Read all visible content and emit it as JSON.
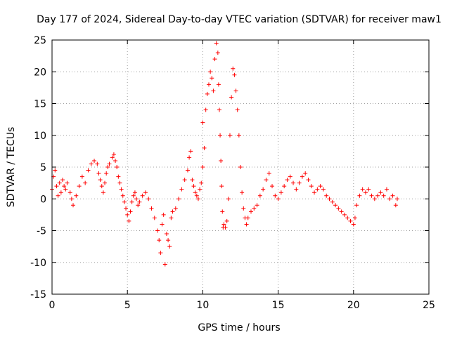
{
  "chart_data": {
    "type": "scatter",
    "title": "Day 177 of 2024, Sidereal Day-to-day VTEC variation (SDTVAR) for receiver maw1",
    "xlabel": "GPS time / hours",
    "ylabel": "SDTVAR / TECUs",
    "xlim": [
      0,
      25
    ],
    "ylim": [
      -15,
      25
    ],
    "xticks": [
      0,
      5,
      10,
      15,
      20,
      25
    ],
    "yticks": [
      -15,
      -10,
      -5,
      0,
      5,
      10,
      15,
      20,
      25
    ],
    "x_tick_labels": [
      "0",
      "5",
      "10",
      "15",
      "20",
      "25"
    ],
    "y_tick_labels": [
      "-15",
      "-10",
      "-5",
      "0",
      "5",
      "10",
      "15",
      "20",
      "25"
    ],
    "grid": true,
    "marker": "+",
    "color": "#ff0000",
    "series": [
      {
        "name": "SDTVAR",
        "points": [
          [
            0.0,
            1.5
          ],
          [
            0.1,
            3.5
          ],
          [
            0.2,
            4.5
          ],
          [
            0.3,
            2.0
          ],
          [
            0.4,
            0.5
          ],
          [
            0.5,
            2.5
          ],
          [
            0.6,
            1.0
          ],
          [
            0.7,
            3.0
          ],
          [
            0.8,
            2.0
          ],
          [
            0.9,
            1.5
          ],
          [
            1.0,
            2.5
          ],
          [
            1.2,
            1.0
          ],
          [
            1.3,
            0.0
          ],
          [
            1.4,
            -1.0
          ],
          [
            1.6,
            0.5
          ],
          [
            1.8,
            2.0
          ],
          [
            2.0,
            3.5
          ],
          [
            2.2,
            2.5
          ],
          [
            2.4,
            4.5
          ],
          [
            2.6,
            5.5
          ],
          [
            2.8,
            6.0
          ],
          [
            3.0,
            5.5
          ],
          [
            3.1,
            4.0
          ],
          [
            3.2,
            3.0
          ],
          [
            3.3,
            2.0
          ],
          [
            3.4,
            1.0
          ],
          [
            3.5,
            2.5
          ],
          [
            3.6,
            4.0
          ],
          [
            3.7,
            5.0
          ],
          [
            3.8,
            5.5
          ],
          [
            4.0,
            6.5
          ],
          [
            4.1,
            7.0
          ],
          [
            4.2,
            6.0
          ],
          [
            4.3,
            5.0
          ],
          [
            4.4,
            3.5
          ],
          [
            4.5,
            2.5
          ],
          [
            4.6,
            1.5
          ],
          [
            4.7,
            0.5
          ],
          [
            4.8,
            -0.5
          ],
          [
            4.9,
            -1.5
          ],
          [
            5.0,
            -2.5
          ],
          [
            5.1,
            -3.5
          ],
          [
            5.2,
            -2.0
          ],
          [
            5.3,
            -0.5
          ],
          [
            5.4,
            0.5
          ],
          [
            5.5,
            1.0
          ],
          [
            5.6,
            0.0
          ],
          [
            5.7,
            -1.0
          ],
          [
            5.8,
            -0.5
          ],
          [
            6.0,
            0.5
          ],
          [
            6.2,
            1.0
          ],
          [
            6.4,
            0.0
          ],
          [
            6.6,
            -1.5
          ],
          [
            6.8,
            -3.0
          ],
          [
            7.0,
            -5.0
          ],
          [
            7.1,
            -6.5
          ],
          [
            7.2,
            -8.5
          ],
          [
            7.3,
            -4.0
          ],
          [
            7.4,
            -2.5
          ],
          [
            7.5,
            -10.3
          ],
          [
            7.6,
            -5.5
          ],
          [
            7.7,
            -6.5
          ],
          [
            7.8,
            -7.5
          ],
          [
            7.9,
            -3.0
          ],
          [
            8.0,
            -2.0
          ],
          [
            8.2,
            -1.5
          ],
          [
            8.4,
            0.0
          ],
          [
            8.6,
            1.5
          ],
          [
            8.8,
            3.0
          ],
          [
            9.0,
            4.5
          ],
          [
            9.1,
            6.5
          ],
          [
            9.2,
            7.5
          ],
          [
            9.3,
            3.0
          ],
          [
            9.4,
            2.0
          ],
          [
            9.5,
            1.0
          ],
          [
            9.6,
            0.5
          ],
          [
            9.7,
            0.0
          ],
          [
            9.8,
            1.5
          ],
          [
            9.9,
            2.5
          ],
          [
            10.0,
            12.0
          ],
          [
            10.0,
            5.0
          ],
          [
            10.1,
            8.0
          ],
          [
            10.2,
            14.0
          ],
          [
            10.3,
            16.5
          ],
          [
            10.4,
            18.0
          ],
          [
            10.5,
            20.0
          ],
          [
            10.6,
            19.0
          ],
          [
            10.7,
            17.0
          ],
          [
            10.8,
            22.0
          ],
          [
            10.9,
            24.5
          ],
          [
            11.0,
            23.0
          ],
          [
            11.05,
            18.0
          ],
          [
            11.1,
            14.0
          ],
          [
            11.15,
            10.0
          ],
          [
            11.2,
            6.0
          ],
          [
            11.25,
            2.0
          ],
          [
            11.3,
            -2.0
          ],
          [
            11.35,
            -4.5
          ],
          [
            11.4,
            -4.0
          ],
          [
            11.5,
            -4.5
          ],
          [
            11.6,
            -3.5
          ],
          [
            11.7,
            0.0
          ],
          [
            11.8,
            10.0
          ],
          [
            11.9,
            16.0
          ],
          [
            12.0,
            20.5
          ],
          [
            12.1,
            19.5
          ],
          [
            12.2,
            17.0
          ],
          [
            12.3,
            14.0
          ],
          [
            12.4,
            10.0
          ],
          [
            12.5,
            5.0
          ],
          [
            12.6,
            1.0
          ],
          [
            12.7,
            -1.5
          ],
          [
            12.8,
            -3.0
          ],
          [
            12.9,
            -4.0
          ],
          [
            13.0,
            -3.0
          ],
          [
            13.2,
            -2.0
          ],
          [
            13.4,
            -1.5
          ],
          [
            13.6,
            -1.0
          ],
          [
            13.8,
            0.5
          ],
          [
            14.0,
            1.5
          ],
          [
            14.2,
            3.0
          ],
          [
            14.4,
            4.0
          ],
          [
            14.6,
            2.0
          ],
          [
            14.8,
            0.5
          ],
          [
            15.0,
            0.0
          ],
          [
            15.2,
            1.0
          ],
          [
            15.4,
            2.0
          ],
          [
            15.6,
            3.0
          ],
          [
            15.8,
            3.5
          ],
          [
            16.0,
            2.5
          ],
          [
            16.2,
            1.5
          ],
          [
            16.4,
            2.5
          ],
          [
            16.6,
            3.5
          ],
          [
            16.8,
            4.0
          ],
          [
            17.0,
            3.0
          ],
          [
            17.2,
            2.0
          ],
          [
            17.4,
            1.0
          ],
          [
            17.6,
            1.5
          ],
          [
            17.8,
            2.0
          ],
          [
            18.0,
            1.5
          ],
          [
            18.2,
            0.5
          ],
          [
            18.4,
            0.0
          ],
          [
            18.6,
            -0.5
          ],
          [
            18.8,
            -1.0
          ],
          [
            19.0,
            -1.5
          ],
          [
            19.2,
            -2.0
          ],
          [
            19.4,
            -2.5
          ],
          [
            19.6,
            -3.0
          ],
          [
            19.8,
            -3.5
          ],
          [
            20.0,
            -4.0
          ],
          [
            20.1,
            -3.0
          ],
          [
            20.2,
            -1.0
          ],
          [
            20.4,
            0.5
          ],
          [
            20.6,
            1.5
          ],
          [
            20.8,
            1.0
          ],
          [
            21.0,
            1.5
          ],
          [
            21.2,
            0.5
          ],
          [
            21.4,
            0.0
          ],
          [
            21.6,
            0.5
          ],
          [
            21.8,
            1.0
          ],
          [
            22.0,
            0.5
          ],
          [
            22.2,
            1.5
          ],
          [
            22.4,
            0.0
          ],
          [
            22.6,
            0.5
          ],
          [
            22.8,
            -1.0
          ],
          [
            22.9,
            0.0
          ]
        ]
      }
    ]
  }
}
